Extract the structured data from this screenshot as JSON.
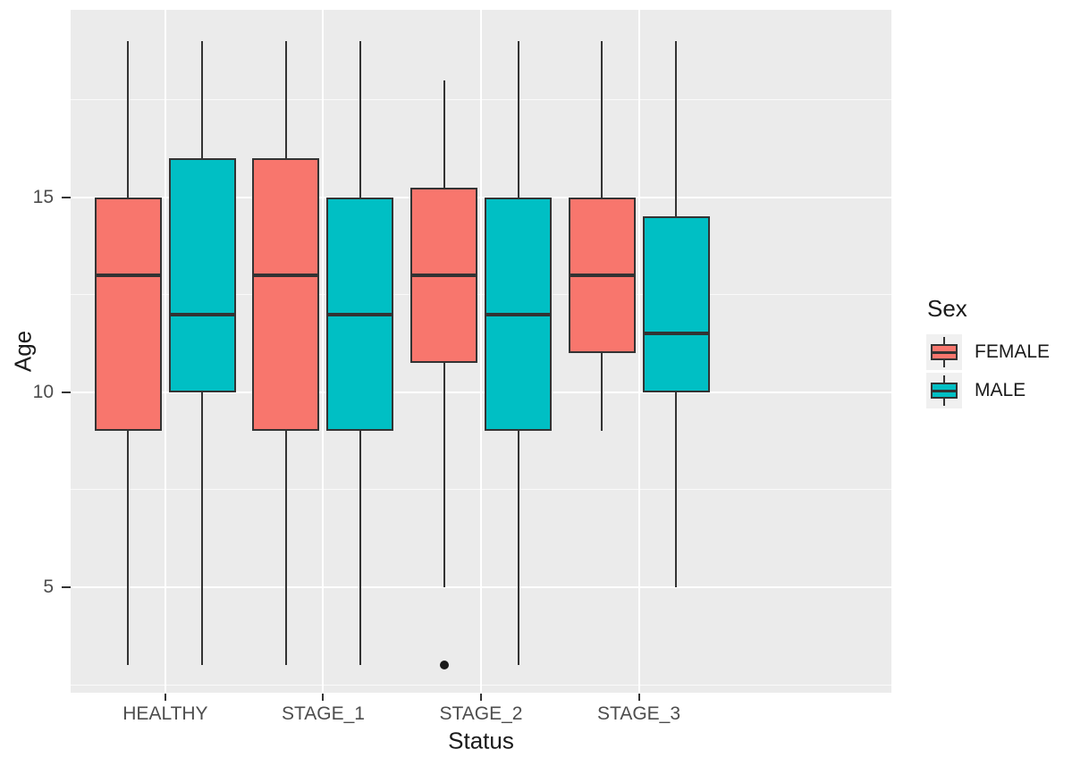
{
  "chart_data": {
    "type": "boxplot",
    "title": "",
    "xlabel": "Status",
    "ylabel": "Age",
    "categories": [
      "HEALTHY",
      "STAGE_1",
      "STAGE_2",
      "STAGE_3"
    ],
    "yticks": [
      5,
      10,
      15
    ],
    "yminor": [
      2.5,
      7.5,
      12.5,
      17.5
    ],
    "ylim": [
      2.3,
      19.8
    ],
    "grid": "white major and minor gridlines on grey panel",
    "legend": {
      "title": "Sex",
      "position": "right",
      "entries": [
        {
          "label": "FEMALE",
          "color": "#F8766D"
        },
        {
          "label": "MALE",
          "color": "#00BFC4"
        }
      ]
    },
    "series": [
      {
        "name": "FEMALE",
        "color": "#F8766D",
        "boxes": [
          {
            "category": "HEALTHY",
            "min": 3,
            "q1": 9,
            "median": 13,
            "q3": 15,
            "max": 19,
            "outliers": []
          },
          {
            "category": "STAGE_1",
            "min": 3,
            "q1": 9,
            "median": 13,
            "q3": 16,
            "max": 19,
            "outliers": []
          },
          {
            "category": "STAGE_2",
            "min": 5,
            "q1": 10.75,
            "median": 13,
            "q3": 15.25,
            "max": 18,
            "outliers": [
              3
            ]
          },
          {
            "category": "STAGE_3",
            "min": 9,
            "q1": 11,
            "median": 13,
            "q3": 15,
            "max": 19,
            "outliers": []
          }
        ]
      },
      {
        "name": "MALE",
        "color": "#00BFC4",
        "boxes": [
          {
            "category": "HEALTHY",
            "min": 3,
            "q1": 10,
            "median": 12,
            "q3": 16,
            "max": 19,
            "outliers": []
          },
          {
            "category": "STAGE_1",
            "min": 3,
            "q1": 9,
            "median": 12,
            "q3": 15,
            "max": 19,
            "outliers": []
          },
          {
            "category": "STAGE_2",
            "min": 3,
            "q1": 9,
            "median": 12,
            "q3": 15,
            "max": 19,
            "outliers": []
          },
          {
            "category": "STAGE_3",
            "min": 5,
            "q1": 10,
            "median": 11.5,
            "q3": 14.5,
            "max": 19,
            "outliers": []
          }
        ]
      }
    ],
    "theme": {
      "panel_bg": "#EBEBEB",
      "grid_color": "#FFFFFF",
      "box_outline": "#333333",
      "axis_text_color": "#4D4D4D",
      "title_color": "#1A1A1A",
      "outlier_color": "#1A1A1A",
      "legend_key_bg": "#F0F0F0"
    }
  }
}
